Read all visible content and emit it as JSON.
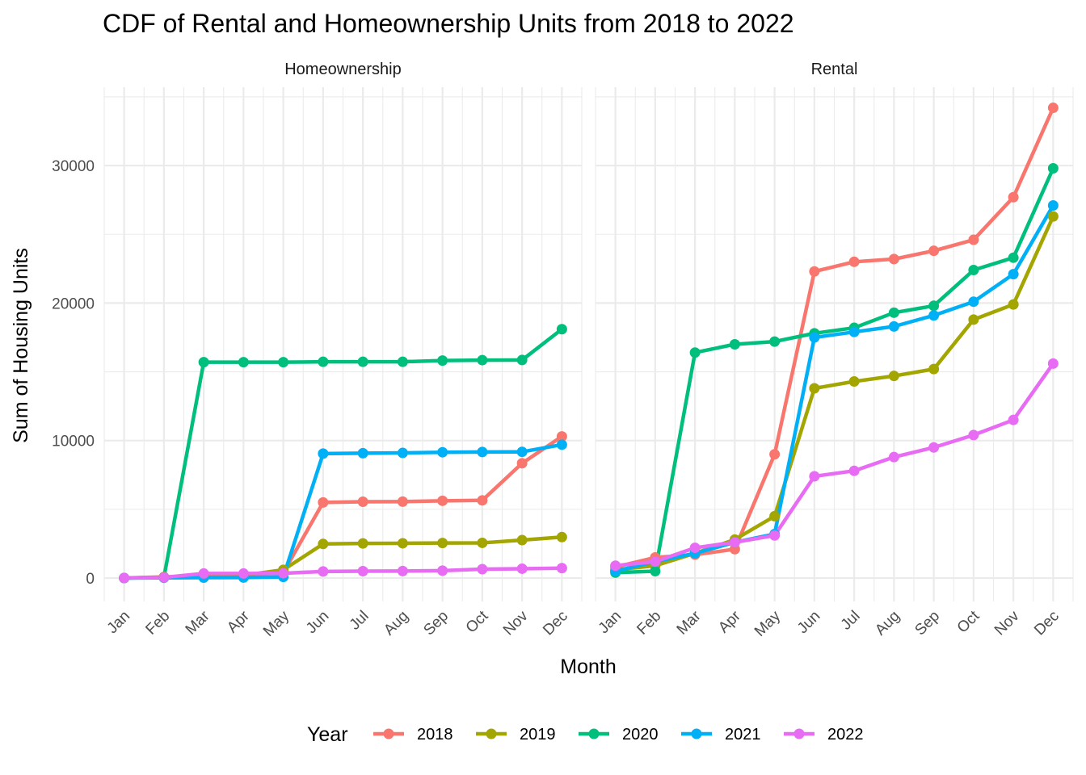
{
  "chart_data": {
    "type": "line",
    "title": "CDF of Rental and Homeownership Units from 2018 to 2022",
    "xlabel": "Month",
    "ylabel": "Sum of Housing Units",
    "categories": [
      "Jan",
      "Feb",
      "Mar",
      "Apr",
      "May",
      "Jun",
      "Jul",
      "Aug",
      "Sep",
      "Oct",
      "Nov",
      "Dec"
    ],
    "y_ticks": [
      0,
      10000,
      20000,
      30000
    ],
    "ylim": [
      -1700,
      35700
    ],
    "grid": true,
    "legend": {
      "title": "Year",
      "position": "bottom",
      "entries": [
        "2018",
        "2019",
        "2020",
        "2021",
        "2022"
      ]
    },
    "colors": {
      "2018": "#F8766D",
      "2019": "#A3A500",
      "2020": "#00BF7D",
      "2021": "#00B0F6",
      "2022": "#E76BF3"
    },
    "panels": [
      {
        "label": "Homeownership",
        "series": [
          {
            "name": "2018",
            "values": [
              0,
              80,
              150,
              200,
              400,
              5500,
              5550,
              5560,
              5620,
              5650,
              8350,
              10300
            ]
          },
          {
            "name": "2019",
            "values": [
              0,
              60,
              150,
              200,
              600,
              2480,
              2520,
              2530,
              2550,
              2560,
              2760,
              2980
            ]
          },
          {
            "name": "2020",
            "values": [
              0,
              50,
              15700,
              15700,
              15700,
              15730,
              15730,
              15730,
              15820,
              15850,
              15860,
              18100
            ]
          },
          {
            "name": "2021",
            "values": [
              0,
              20,
              30,
              40,
              80,
              9050,
              9080,
              9100,
              9150,
              9170,
              9180,
              9700
            ]
          },
          {
            "name": "2022",
            "values": [
              0,
              50,
              330,
              330,
              350,
              480,
              500,
              510,
              540,
              650,
              680,
              720
            ]
          }
        ]
      },
      {
        "label": "Rental",
        "series": [
          {
            "name": "2018",
            "values": [
              800,
              1500,
              1700,
              2100,
              9000,
              22300,
              23000,
              23200,
              23800,
              24600,
              27700,
              34200
            ]
          },
          {
            "name": "2019",
            "values": [
              600,
              900,
              1800,
              2800,
              4500,
              13800,
              14300,
              14700,
              15200,
              18800,
              19900,
              26300
            ]
          },
          {
            "name": "2020",
            "values": [
              400,
              500,
              16400,
              17000,
              17200,
              17800,
              18200,
              19300,
              19800,
              22400,
              23300,
              29800
            ]
          },
          {
            "name": "2021",
            "values": [
              500,
              1200,
              1800,
              2600,
              3200,
              17500,
              17900,
              18300,
              19100,
              20100,
              22100,
              27100
            ]
          },
          {
            "name": "2022",
            "values": [
              900,
              1200,
              2200,
              2600,
              3100,
              7400,
              7800,
              8800,
              9500,
              10400,
              11500,
              15600
            ]
          }
        ]
      }
    ]
  }
}
